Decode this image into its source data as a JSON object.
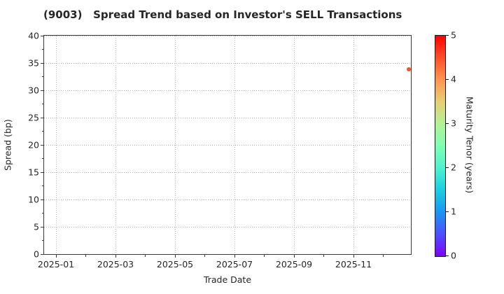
{
  "figure": {
    "title": "(9003)   Spread Trend based on Investor's SELL Transactions",
    "background": "#ffffff",
    "text_color": "#262626",
    "spine_color": "#3a3a3a",
    "grid_color": "#b3b3b3"
  },
  "chart_data": {
    "type": "scatter",
    "title": "(9003)   Spread Trend based on Investor's SELL Transactions",
    "xlabel": "Trade Date",
    "ylabel": "Spread (bp)",
    "x_tick_labels": [
      "2025-01",
      "2025-03",
      "2025-05",
      "2025-07",
      "2025-09",
      "2025-11"
    ],
    "x_minor_ticks": "monthly",
    "y_ticks": [
      0,
      5,
      10,
      15,
      20,
      25,
      30,
      35,
      40
    ],
    "y_minor_tick_step": 2.5,
    "ylim": [
      0,
      40
    ],
    "xlim": [
      "2024-12-19",
      "2025-12-20"
    ],
    "grid": "dotted",
    "legend_position": "none",
    "points": [
      {
        "trade_date": "2025-12",
        "spread_bp": 33.9,
        "maturity_tenor_years": 4.5,
        "color": "#fb4f28",
        "x_frac": 0.994
      }
    ],
    "colorbar": {
      "label": "Maturity Tenor (years)",
      "ticks": [
        0,
        1,
        2,
        3,
        4,
        5
      ],
      "range": [
        0,
        5
      ],
      "colormap": "rainbow",
      "gradient_stops": [
        "#8000ff",
        "#4d4ffc",
        "#1a96f2",
        "#1acee3",
        "#4df2ce",
        "#80ffb4",
        "#b3f296",
        "#e6ce74",
        "#ff9650",
        "#ff4f28",
        "#ff0000"
      ]
    }
  }
}
